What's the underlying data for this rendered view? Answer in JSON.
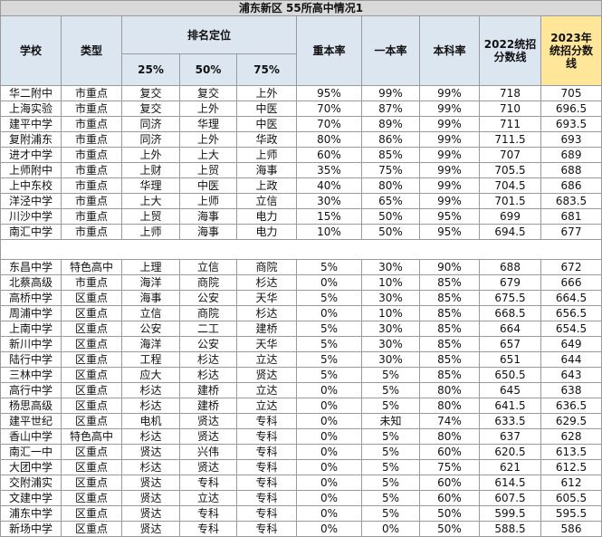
{
  "title": "浦东新区 55所高中情况1",
  "header": {
    "school": "学校",
    "type": "类型",
    "rank": "排名定位",
    "rank_sub": [
      "25%",
      "50%",
      "75%"
    ],
    "rates": [
      "重本率",
      "一本率",
      "本科率"
    ],
    "score2022": [
      "2022统招",
      "分数线"
    ],
    "score2023": [
      "2023年",
      "统招分数",
      "线"
    ]
  },
  "groups": [
    [
      [
        "华二附中",
        "市重点",
        "复交",
        "复交",
        "上外",
        "95%",
        "99%",
        "99%",
        "718",
        "705"
      ],
      [
        "上海实验",
        "市重点",
        "复交",
        "上外",
        "中医",
        "70%",
        "87%",
        "99%",
        "710",
        "696.5"
      ],
      [
        "建平中学",
        "市重点",
        "同济",
        "华理",
        "中医",
        "70%",
        "89%",
        "99%",
        "711",
        "693.5"
      ],
      [
        "复附浦东",
        "市重点",
        "同济",
        "上外",
        "华政",
        "80%",
        "86%",
        "99%",
        "711.5",
        "693"
      ],
      [
        "进才中学",
        "市重点",
        "上外",
        "上大",
        "上师",
        "60%",
        "85%",
        "99%",
        "707",
        "689"
      ],
      [
        "上师附中",
        "市重点",
        "上财",
        "上贸",
        "海事",
        "35%",
        "75%",
        "99%",
        "705.5",
        "688"
      ],
      [
        "上中东校",
        "市重点",
        "华理",
        "中医",
        "上政",
        "40%",
        "80%",
        "99%",
        "704.5",
        "686"
      ],
      [
        "洋泾中学",
        "市重点",
        "上大",
        "上师",
        "立信",
        "30%",
        "65%",
        "99%",
        "701.5",
        "683.5"
      ],
      [
        "川沙中学",
        "市重点",
        "上贸",
        "海事",
        "电力",
        "15%",
        "50%",
        "95%",
        "699",
        "681"
      ],
      [
        "南汇中学",
        "市重点",
        "上师",
        "海事",
        "电力",
        "10%",
        "50%",
        "95%",
        "694.5",
        "677"
      ]
    ],
    [
      [
        "东昌中学",
        "特色高中",
        "上理",
        "立信",
        "商院",
        "5%",
        "30%",
        "90%",
        "688",
        "672"
      ],
      [
        "北蔡高级",
        "市重点",
        "海洋",
        "商院",
        "杉达",
        "0%",
        "10%",
        "85%",
        "679",
        "666"
      ],
      [
        "高桥中学",
        "区重点",
        "海事",
        "公安",
        "天华",
        "5%",
        "30%",
        "85%",
        "675.5",
        "664.5"
      ],
      [
        "周浦中学",
        "区重点",
        "立信",
        "商院",
        "杉达",
        "0%",
        "10%",
        "85%",
        "668.5",
        "656.5"
      ],
      [
        "上南中学",
        "区重点",
        "公安",
        "二工",
        "建桥",
        "5%",
        "30%",
        "85%",
        "664",
        "654.5"
      ],
      [
        "新川中学",
        "区重点",
        "海洋",
        "公安",
        "天华",
        "5%",
        "30%",
        "85%",
        "657",
        "649"
      ],
      [
        "陆行中学",
        "区重点",
        "工程",
        "杉达",
        "立达",
        "5%",
        "30%",
        "85%",
        "651",
        "644"
      ],
      [
        "三林中学",
        "区重点",
        "应大",
        "杉达",
        "贤达",
        "5%",
        "5%",
        "85%",
        "650.5",
        "643"
      ],
      [
        "高行中学",
        "区重点",
        "杉达",
        "建桥",
        "立达",
        "0%",
        "5%",
        "80%",
        "645",
        "638"
      ],
      [
        "杨思高级",
        "区重点",
        "杉达",
        "建桥",
        "立达",
        "0%",
        "5%",
        "80%",
        "641.5",
        "636.5"
      ],
      [
        "建平世纪",
        "区重点",
        "电机",
        "贤达",
        "专科",
        "0%",
        "未知",
        "74%",
        "633.5",
        "629.5"
      ],
      [
        "香山中学",
        "特色高中",
        "杉达",
        "贤达",
        "专科",
        "0%",
        "5%",
        "80%",
        "637",
        "628"
      ],
      [
        "南汇一中",
        "区重点",
        "贤达",
        "兴伟",
        "专科",
        "0%",
        "5%",
        "60%",
        "620.5",
        "613.5"
      ],
      [
        "大团中学",
        "区重点",
        "杉达",
        "贤达",
        "专科",
        "0%",
        "5%",
        "75%",
        "621",
        "612.5"
      ],
      [
        "交附浦实",
        "区重点",
        "贤达",
        "专科",
        "专科",
        "0%",
        "5%",
        "60%",
        "614.5",
        "612"
      ],
      [
        "文建中学",
        "区重点",
        "贤达",
        "立达",
        "专科",
        "0%",
        "5%",
        "60%",
        "607.5",
        "605.5"
      ],
      [
        "浦东中学",
        "区重点",
        "贤达",
        "专科",
        "专科",
        "0%",
        "5%",
        "50%",
        "599.5",
        "595.5"
      ],
      [
        "新场中学",
        "区重点",
        "贤达",
        "专科",
        "专科",
        "0%",
        "0%",
        "50%",
        "588.5",
        "586"
      ]
    ]
  ]
}
